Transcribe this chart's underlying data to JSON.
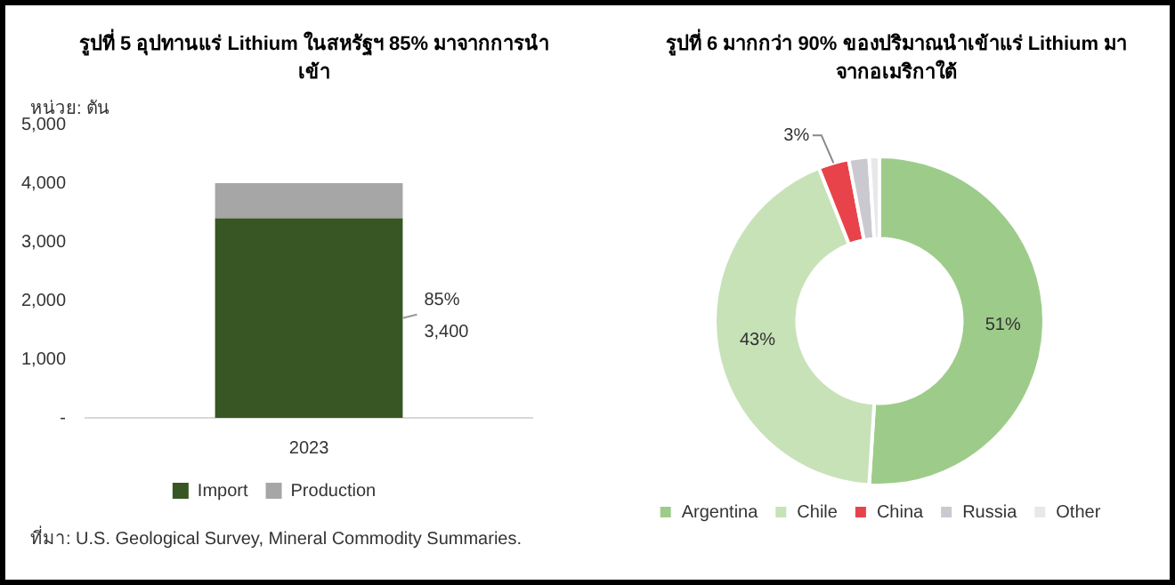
{
  "chart_data": [
    {
      "type": "bar",
      "title": "รูปที่ 5 อุปทานแร่ Lithium ในสหรัฐฯ 85% มาจากการนำเข้า",
      "ylabel": "หน่วย: ตัน",
      "categories": [
        "2023"
      ],
      "stacked": true,
      "series": [
        {
          "name": "Import",
          "color": "#375623",
          "values": [
            3400
          ],
          "value_labels": [
            "3,400"
          ]
        },
        {
          "name": "Production",
          "color": "#a6a6a6",
          "values": [
            600
          ]
        }
      ],
      "ylim": [
        0,
        5000
      ],
      "yticks": [
        {
          "value": 0,
          "label": "-"
        },
        {
          "value": 1000,
          "label": "1,000"
        },
        {
          "value": 2000,
          "label": "2,000"
        },
        {
          "value": 3000,
          "label": "3,000"
        },
        {
          "value": 4000,
          "label": "4,000"
        },
        {
          "value": 5000,
          "label": "5,000"
        }
      ],
      "grid": false,
      "legend": "bottom",
      "annotations": [
        "85%",
        "ที่มา: U.S. Geological Survey, Mineral Commodity Summaries."
      ]
    },
    {
      "type": "donut",
      "title": "รูปที่ 6 มากกว่า 90% ของปริมาณนำเข้าแร่ Lithium มาจากอเมริกาใต้",
      "categories": [
        "Argentina",
        "Chile",
        "China",
        "Russia",
        "Other"
      ],
      "values": [
        51,
        43,
        3,
        2,
        1
      ],
      "colors": [
        "#9dcc8a",
        "#c8e2b8",
        "#e8434a",
        "#c9c9cf",
        "#e8e8ea"
      ],
      "value_labels": [
        "51%",
        "43%",
        "3%",
        null,
        null
      ],
      "legend": "bottom"
    }
  ]
}
